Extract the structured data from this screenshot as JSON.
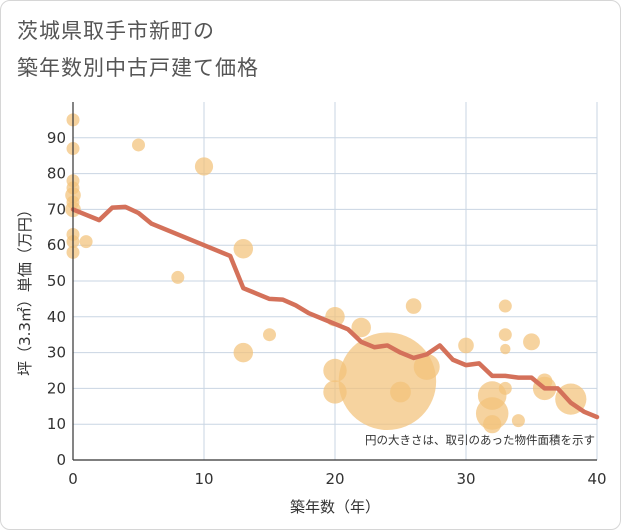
{
  "chart_data": {
    "type": "scatter",
    "title_lines": [
      "茨城県取手市新町の",
      "築年数別中古戸建て価格"
    ],
    "xlabel": "築年数（年）",
    "ylabel": "坪（3.3㎡）単価（万円）",
    "xlim": [
      0,
      40
    ],
    "ylim": [
      0,
      100
    ],
    "x_ticks": [
      0,
      10,
      20,
      30,
      40
    ],
    "y_ticks": [
      0,
      10,
      20,
      30,
      40,
      50,
      60,
      70,
      80,
      90
    ],
    "grid": true,
    "note": "円の大きさは、取引のあった物件面積を示す",
    "colors": {
      "bubble": "#f2c27a",
      "trend": "#d4715a",
      "grid": "#c9d5e3"
    },
    "points": [
      {
        "x": 0,
        "y": 95,
        "size": 1
      },
      {
        "x": 0,
        "y": 87,
        "size": 1
      },
      {
        "x": 0,
        "y": 78,
        "size": 1
      },
      {
        "x": 0,
        "y": 76,
        "size": 1
      },
      {
        "x": 0,
        "y": 74,
        "size": 1.2
      },
      {
        "x": 0,
        "y": 72,
        "size": 1
      },
      {
        "x": 0,
        "y": 70,
        "size": 1.2
      },
      {
        "x": 0,
        "y": 63,
        "size": 1
      },
      {
        "x": 0,
        "y": 61,
        "size": 1
      },
      {
        "x": 0,
        "y": 58,
        "size": 1
      },
      {
        "x": 1,
        "y": 61,
        "size": 1
      },
      {
        "x": 5,
        "y": 88,
        "size": 1
      },
      {
        "x": 8,
        "y": 51,
        "size": 1
      },
      {
        "x": 10,
        "y": 82,
        "size": 1.4
      },
      {
        "x": 13,
        "y": 59,
        "size": 1.5
      },
      {
        "x": 13,
        "y": 30,
        "size": 1.5
      },
      {
        "x": 15,
        "y": 35,
        "size": 1
      },
      {
        "x": 20,
        "y": 40,
        "size": 1.5
      },
      {
        "x": 20,
        "y": 25,
        "size": 1.8
      },
      {
        "x": 20,
        "y": 19,
        "size": 1.8
      },
      {
        "x": 22,
        "y": 37,
        "size": 1.5
      },
      {
        "x": 24,
        "y": 22,
        "size": 7.5
      },
      {
        "x": 25,
        "y": 19,
        "size": 1.6
      },
      {
        "x": 26,
        "y": 43,
        "size": 1.2
      },
      {
        "x": 27,
        "y": 26,
        "size": 2
      },
      {
        "x": 30,
        "y": 32,
        "size": 1.2
      },
      {
        "x": 32,
        "y": 18,
        "size": 2.2
      },
      {
        "x": 32,
        "y": 13,
        "size": 2.5
      },
      {
        "x": 32,
        "y": 10,
        "size": 1.4
      },
      {
        "x": 33,
        "y": 43,
        "size": 1
      },
      {
        "x": 33,
        "y": 35,
        "size": 1
      },
      {
        "x": 33,
        "y": 31,
        "size": 0.8
      },
      {
        "x": 33,
        "y": 20,
        "size": 1
      },
      {
        "x": 34,
        "y": 11,
        "size": 1
      },
      {
        "x": 35,
        "y": 33,
        "size": 1.3
      },
      {
        "x": 36,
        "y": 22,
        "size": 1.2
      },
      {
        "x": 36,
        "y": 20,
        "size": 1.8
      },
      {
        "x": 38,
        "y": 17,
        "size": 2.4
      }
    ],
    "trend": {
      "x": [
        0,
        1,
        2,
        3,
        4,
        5,
        6,
        7,
        8,
        9,
        10,
        11,
        12,
        13,
        14,
        15,
        16,
        17,
        18,
        19,
        20,
        21,
        22,
        23,
        24,
        25,
        26,
        27,
        28,
        29,
        30,
        31,
        32,
        33,
        34,
        35,
        36,
        37,
        38,
        39,
        40
      ],
      "y": [
        70,
        68.5,
        67,
        70.5,
        70.7,
        69,
        66,
        64.5,
        63,
        61.5,
        60,
        58.5,
        57,
        48,
        46.5,
        45,
        44.8,
        43.2,
        41,
        39.5,
        38,
        36.5,
        33,
        31.5,
        32,
        30,
        28.5,
        29.5,
        32,
        28,
        26.5,
        27,
        23.5,
        23.5,
        23,
        23,
        20,
        20,
        16,
        13.5,
        12
      ]
    }
  }
}
